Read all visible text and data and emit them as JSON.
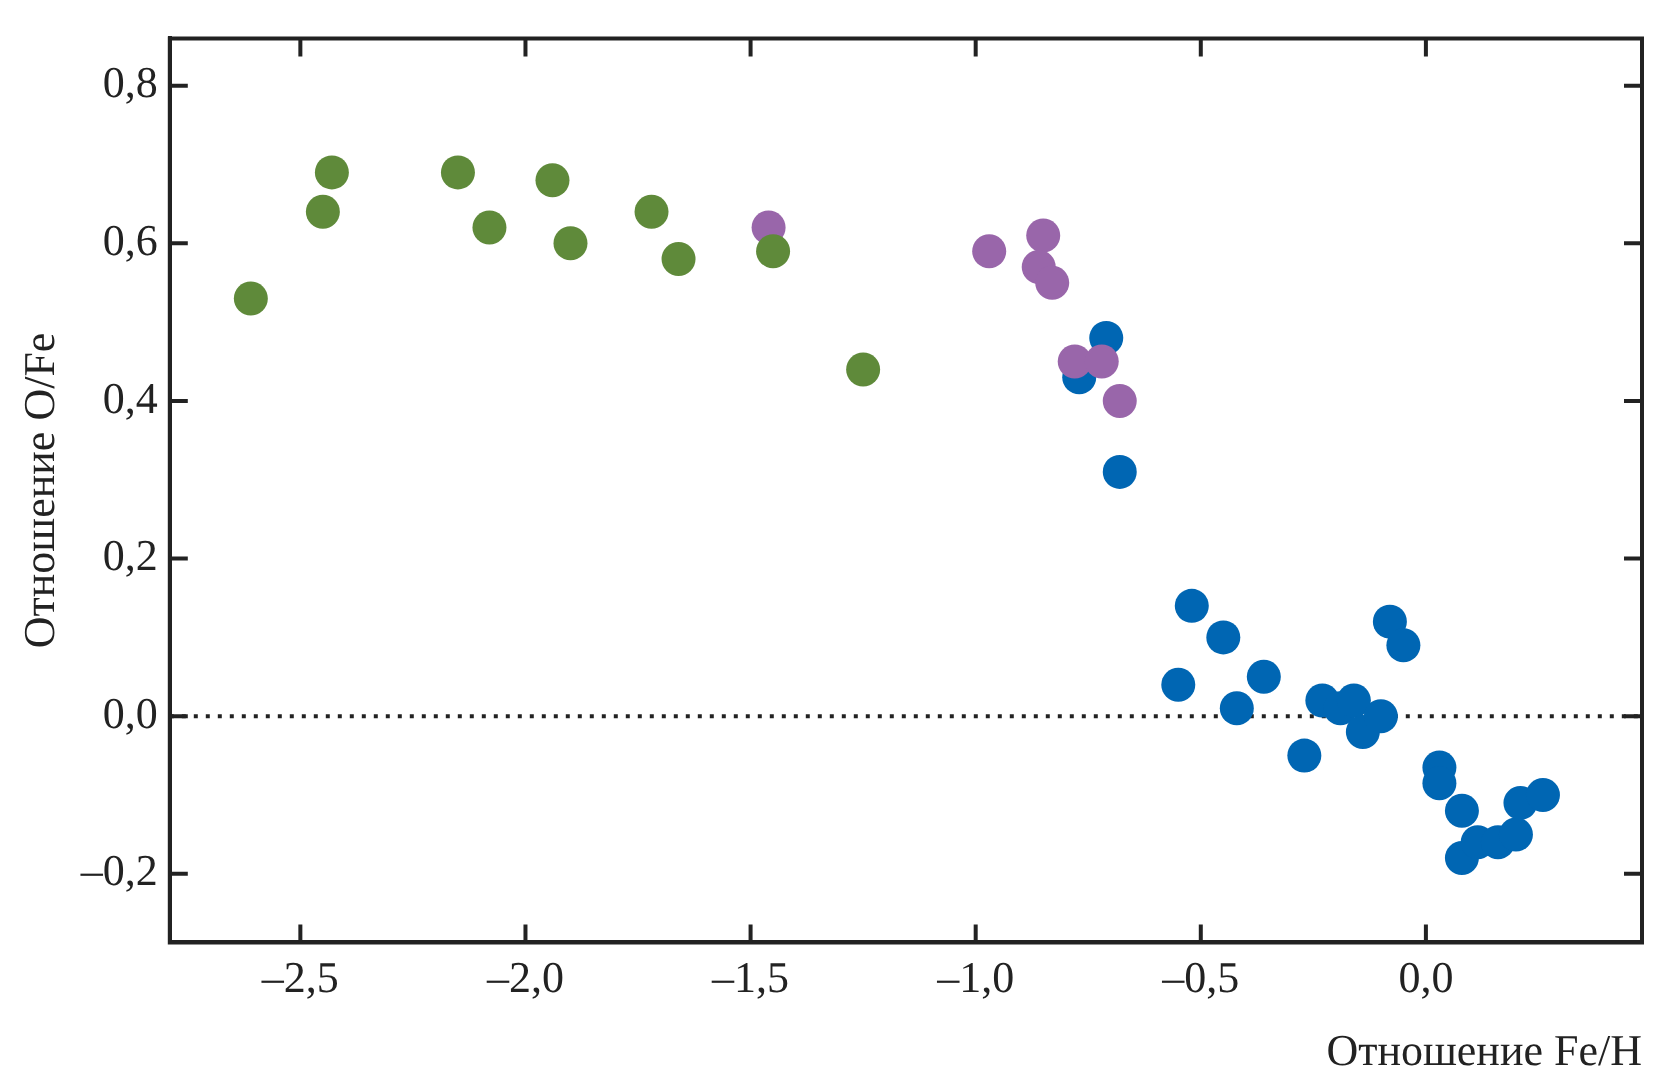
{
  "chart_data": {
    "type": "scatter",
    "xlabel": "Отношение Fe/H",
    "ylabel": "Отношение O/Fe",
    "xlim": [
      -2.79,
      0.48
    ],
    "ylim": [
      -0.287,
      0.86
    ],
    "xticks": [
      {
        "value": -2.5,
        "label": "–2,5"
      },
      {
        "value": -2,
        "label": "–2,0"
      },
      {
        "value": -1.5,
        "label": "–1,5"
      },
      {
        "value": -1,
        "label": "–1,0"
      },
      {
        "value": -0.5,
        "label": "–0,5"
      },
      {
        "value": 0,
        "label": "0,0"
      }
    ],
    "yticks": [
      {
        "value": -0.2,
        "label": "–0,2"
      },
      {
        "value": 0,
        "label": "0,0"
      },
      {
        "value": 0.2,
        "label": "0,2"
      },
      {
        "value": 0.4,
        "label": "0,4"
      },
      {
        "value": 0.6,
        "label": "0,6"
      },
      {
        "value": 0.8,
        "label": "0,8"
      }
    ],
    "grid": false,
    "legend": false,
    "marker": "circle",
    "ref_lines": [
      {
        "axis": "y",
        "value": 0,
        "line_style": "dotted",
        "color": "#222222"
      }
    ],
    "series": [
      {
        "color": "#5f8a3a",
        "x": [
          -2.61,
          -2.45,
          -2.43,
          -2.15,
          -2.08,
          -1.94,
          -1.9,
          -1.72,
          -1.66,
          -1.45,
          -1.25
        ],
        "values": [
          0.53,
          0.64,
          0.69,
          0.69,
          0.62,
          0.68,
          0.6,
          0.64,
          0.58,
          0.59,
          0.44
        ]
      },
      {
        "color": "#9966aa",
        "x": [
          -1.46,
          -0.97,
          -0.85,
          -0.86,
          -0.83,
          -0.78,
          -0.72,
          -0.68
        ],
        "values": [
          0.62,
          0.59,
          0.61,
          0.57,
          0.55,
          0.45,
          0.45,
          0.4
        ]
      },
      {
        "color": "#0066b3",
        "x": [
          -0.71,
          -0.77,
          -0.68,
          -0.52,
          -0.45,
          -0.55,
          -0.36,
          -0.42,
          -0.27,
          -0.23,
          -0.19,
          -0.16,
          -0.14,
          -0.1,
          -0.08,
          -0.05,
          0.03,
          0.03,
          0.08,
          0.08,
          0.115,
          0.16,
          0.2,
          0.21,
          0.26
        ],
        "values": [
          0.48,
          0.43,
          0.31,
          0.14,
          0.1,
          0.04,
          0.05,
          0.01,
          -0.05,
          0.02,
          0.01,
          0.02,
          -0.02,
          0,
          0.12,
          0.09,
          -0.065,
          -0.085,
          -0.12,
          -0.18,
          -0.16,
          -0.16,
          -0.15,
          -0.11,
          -0.1
        ]
      }
    ]
  }
}
